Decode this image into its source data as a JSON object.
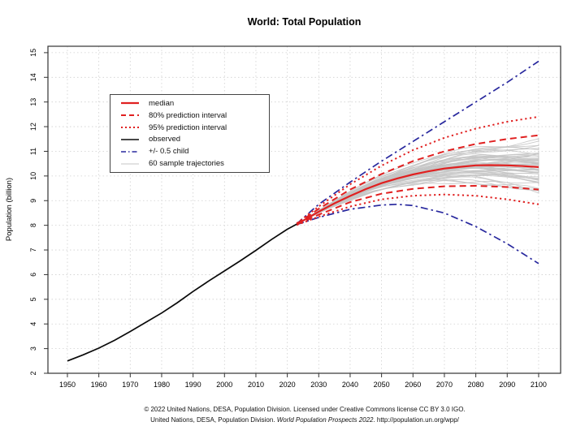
{
  "title": "World: Total Population",
  "footer": {
    "line1": "© 2022 United Nations, DESA, Population Division. Licensed under Creative Commons license CC BY 3.0 IGO.",
    "line2_pre": "United Nations, DESA, Population Division. ",
    "line2_italic": "World Population Prospects 2022",
    "line2_post": ". http://population.un.org/wpp/"
  },
  "colors": {
    "red": "#e02020",
    "blue": "#28289e",
    "black": "#0a0a0a",
    "gray": "#c4c4c4",
    "grid": "#cfcfcf",
    "frame": "#333333"
  },
  "legend": {
    "items": [
      {
        "label": "median",
        "style": "solid",
        "color": "#e02020",
        "width": 2.2
      },
      {
        "label": "80% prediction interval",
        "style": "dashed",
        "color": "#e02020",
        "width": 2.0
      },
      {
        "label": "95% prediction interval",
        "style": "dotted",
        "color": "#e02020",
        "width": 2.0
      },
      {
        "label": "observed",
        "style": "solid",
        "color": "#0a0a0a",
        "width": 1.6
      },
      {
        "label": "+/- 0.5 child",
        "style": "dashdot",
        "color": "#28289e",
        "width": 1.6
      },
      {
        "label": "60 sample trajectories",
        "style": "solid",
        "color": "#c4c4c4",
        "width": 1.0
      }
    ]
  },
  "chart_data": {
    "type": "line",
    "title": "World: Total Population",
    "xlabel": "",
    "ylabel": "Population (billion)",
    "xlim": [
      1943.8,
      2107.0
    ],
    "ylim": [
      2,
      15.26
    ],
    "x_ticks": [
      1950,
      1960,
      1970,
      1980,
      1990,
      2000,
      2010,
      2020,
      2030,
      2040,
      2050,
      2060,
      2070,
      2080,
      2090,
      2100
    ],
    "y_ticks": [
      2,
      3,
      4,
      5,
      6,
      7,
      8,
      9,
      10,
      11,
      12,
      13,
      14,
      15
    ],
    "grid": true,
    "legend_position": "upper-left-inset",
    "series": [
      {
        "name": "observed",
        "style": "solid",
        "color_role": "black",
        "width": 1.7,
        "points": [
          [
            1950,
            2.499
          ],
          [
            1955,
            2.746
          ],
          [
            1960,
            3.019
          ],
          [
            1965,
            3.337
          ],
          [
            1970,
            3.695
          ],
          [
            1975,
            4.07
          ],
          [
            1980,
            4.444
          ],
          [
            1985,
            4.861
          ],
          [
            1990,
            5.316
          ],
          [
            1995,
            5.743
          ],
          [
            2000,
            6.149
          ],
          [
            2005,
            6.558
          ],
          [
            2010,
            6.986
          ],
          [
            2015,
            7.427
          ],
          [
            2020,
            7.841
          ],
          [
            2023,
            8.045
          ]
        ]
      },
      {
        "name": "median",
        "style": "solid",
        "color_role": "red",
        "width": 2.2,
        "points": [
          [
            2023,
            8.045
          ],
          [
            2025,
            8.19
          ],
          [
            2030,
            8.55
          ],
          [
            2035,
            8.89
          ],
          [
            2040,
            9.19
          ],
          [
            2045,
            9.47
          ],
          [
            2050,
            9.71
          ],
          [
            2055,
            9.9
          ],
          [
            2060,
            10.06
          ],
          [
            2065,
            10.19
          ],
          [
            2070,
            10.3
          ],
          [
            2075,
            10.37
          ],
          [
            2080,
            10.43
          ],
          [
            2085,
            10.44
          ],
          [
            2090,
            10.43
          ],
          [
            2095,
            10.4
          ],
          [
            2100,
            10.36
          ]
        ]
      },
      {
        "name": "80% prediction interval upper",
        "style": "dashed",
        "color_role": "red",
        "width": 2.0,
        "points": [
          [
            2023,
            8.06
          ],
          [
            2030,
            8.67
          ],
          [
            2040,
            9.45
          ],
          [
            2050,
            10.08
          ],
          [
            2060,
            10.6
          ],
          [
            2070,
            11.0
          ],
          [
            2080,
            11.3
          ],
          [
            2090,
            11.5
          ],
          [
            2100,
            11.65
          ]
        ]
      },
      {
        "name": "80% prediction interval lower",
        "style": "dashed",
        "color_role": "red",
        "width": 2.0,
        "points": [
          [
            2023,
            8.03
          ],
          [
            2030,
            8.43
          ],
          [
            2040,
            8.94
          ],
          [
            2050,
            9.28
          ],
          [
            2060,
            9.48
          ],
          [
            2070,
            9.58
          ],
          [
            2080,
            9.6
          ],
          [
            2090,
            9.55
          ],
          [
            2100,
            9.45
          ]
        ]
      },
      {
        "name": "95% prediction interval upper",
        "style": "dotted",
        "color_role": "red",
        "width": 2.0,
        "points": [
          [
            2023,
            8.08
          ],
          [
            2030,
            8.76
          ],
          [
            2040,
            9.66
          ],
          [
            2050,
            10.42
          ],
          [
            2060,
            11.05
          ],
          [
            2070,
            11.55
          ],
          [
            2080,
            11.92
          ],
          [
            2090,
            12.2
          ],
          [
            2100,
            12.4
          ]
        ]
      },
      {
        "name": "95% prediction interval lower",
        "style": "dotted",
        "color_role": "red",
        "width": 2.0,
        "points": [
          [
            2023,
            8.01
          ],
          [
            2030,
            8.35
          ],
          [
            2040,
            8.76
          ],
          [
            2050,
            9.05
          ],
          [
            2060,
            9.2
          ],
          [
            2070,
            9.25
          ],
          [
            2080,
            9.2
          ],
          [
            2090,
            9.05
          ],
          [
            2100,
            8.85
          ]
        ]
      },
      {
        "name": "+0.5 child",
        "style": "dashdot",
        "color_role": "blue",
        "width": 1.7,
        "points": [
          [
            2023,
            8.06
          ],
          [
            2030,
            8.85
          ],
          [
            2040,
            9.75
          ],
          [
            2050,
            10.6
          ],
          [
            2060,
            11.4
          ],
          [
            2070,
            12.2
          ],
          [
            2080,
            13.0
          ],
          [
            2090,
            13.8
          ],
          [
            2100,
            14.65
          ]
        ]
      },
      {
        "name": "-0.5 child",
        "style": "dashdot",
        "color_role": "blue",
        "width": 1.7,
        "points": [
          [
            2023,
            8.03
          ],
          [
            2030,
            8.32
          ],
          [
            2040,
            8.65
          ],
          [
            2050,
            8.82
          ],
          [
            2055,
            8.85
          ],
          [
            2060,
            8.8
          ],
          [
            2070,
            8.5
          ],
          [
            2080,
            7.95
          ],
          [
            2090,
            7.25
          ],
          [
            2100,
            6.45
          ]
        ]
      }
    ],
    "sample_trajectories": {
      "count": 60,
      "seed": 42,
      "start": [
        2023,
        8.045
      ],
      "end_range": [
        9.25,
        11.7
      ],
      "color_role": "gray",
      "width": 0.9
    }
  }
}
